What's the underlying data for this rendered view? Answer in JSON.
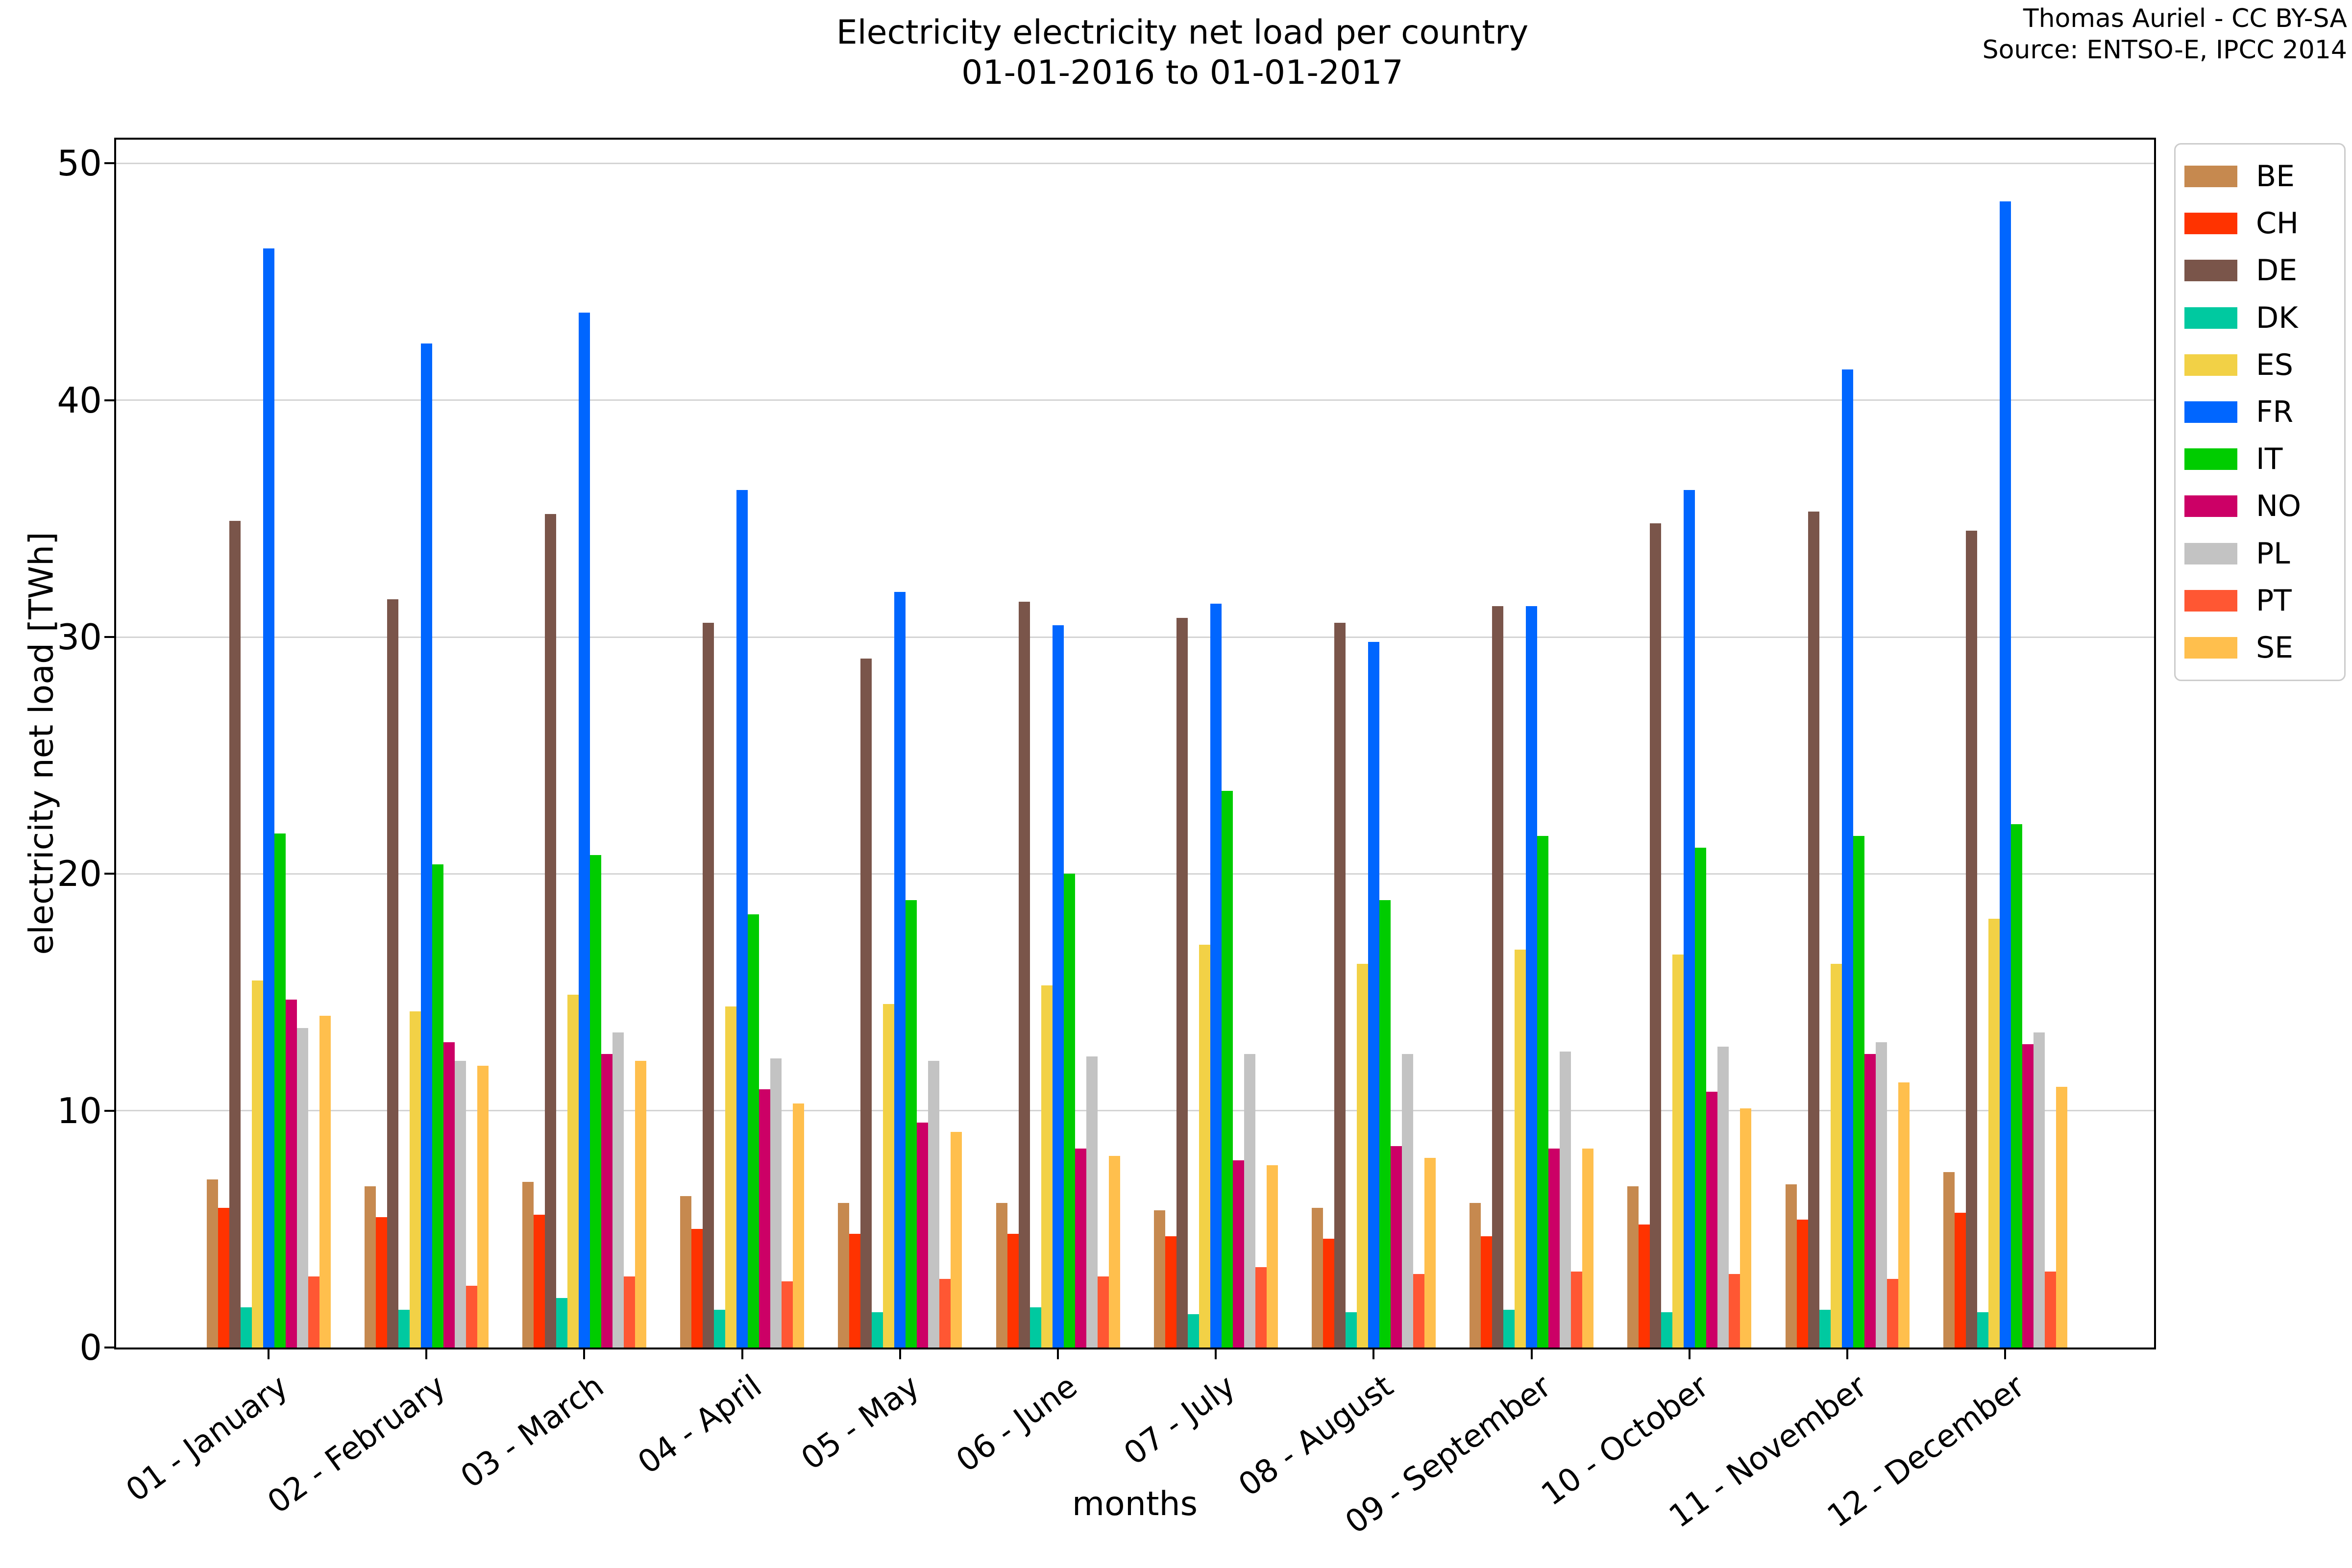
{
  "title": {
    "line1": "Electricity electricity net load per country",
    "line2": "01-01-2016 to 01-01-2017"
  },
  "attribution": {
    "line1": "Thomas Auriel - CC BY-SA",
    "line2": "Source: ENTSO-E, IPCC 2014"
  },
  "chart_data": {
    "type": "bar",
    "title": "Electricity electricity net load per country\n01-01-2016 to 01-01-2017",
    "xlabel": "months",
    "ylabel": "electricity net load [TWh]",
    "ylim": [
      0,
      51
    ],
    "yticks": [
      0,
      10,
      20,
      30,
      40,
      50
    ],
    "grid": true,
    "legend_position": "upper right, outside plot",
    "gridline_color": "#d4d4d4",
    "categories": [
      "01 - January",
      "02 - February",
      "03 - March",
      "04 - April",
      "05 - May",
      "06 - June",
      "07 - July",
      "08 - August",
      "09 - September",
      "10 - October",
      "11 - November",
      "12 - December"
    ],
    "series": [
      {
        "name": "BE",
        "color": "#C6894F",
        "values": [
          7.1,
          6.8,
          7.0,
          6.4,
          6.1,
          6.1,
          5.8,
          5.9,
          6.1,
          6.8,
          6.9,
          7.4
        ]
      },
      {
        "name": "CH",
        "color": "#FF3300",
        "values": [
          5.9,
          5.5,
          5.6,
          5.0,
          4.8,
          4.8,
          4.7,
          4.6,
          4.7,
          5.2,
          5.4,
          5.7
        ]
      },
      {
        "name": "DE",
        "color": "#7A554A",
        "values": [
          34.9,
          31.6,
          35.2,
          30.6,
          29.1,
          31.5,
          30.8,
          30.6,
          31.3,
          34.8,
          35.3,
          34.5
        ]
      },
      {
        "name": "DK",
        "color": "#00C9A0",
        "values": [
          1.7,
          1.6,
          2.1,
          1.6,
          1.5,
          1.7,
          1.4,
          1.5,
          1.6,
          1.5,
          1.6,
          1.5
        ]
      },
      {
        "name": "ES",
        "color": "#F2D146",
        "values": [
          15.5,
          14.2,
          14.9,
          14.4,
          14.5,
          15.3,
          17.0,
          16.2,
          16.8,
          16.6,
          16.2,
          18.1
        ]
      },
      {
        "name": "FR",
        "color": "#0066FF",
        "values": [
          46.4,
          42.4,
          43.7,
          36.2,
          31.9,
          30.5,
          31.4,
          29.8,
          31.3,
          36.2,
          41.3,
          48.4
        ]
      },
      {
        "name": "IT",
        "color": "#00CC00",
        "values": [
          21.7,
          20.4,
          20.8,
          18.3,
          18.9,
          20.0,
          23.5,
          18.9,
          21.6,
          21.1,
          21.6,
          22.1
        ]
      },
      {
        "name": "NO",
        "color": "#CC0066",
        "values": [
          14.7,
          12.9,
          12.4,
          10.9,
          9.5,
          8.4,
          7.9,
          8.5,
          8.4,
          10.8,
          12.4,
          12.8
        ]
      },
      {
        "name": "PL",
        "color": "#C3C3C3",
        "values": [
          13.5,
          12.1,
          13.3,
          12.2,
          12.1,
          12.3,
          12.4,
          12.4,
          12.5,
          12.7,
          12.9,
          13.3
        ]
      },
      {
        "name": "PT",
        "color": "#FF5733",
        "values": [
          3.0,
          2.6,
          3.0,
          2.8,
          2.9,
          3.0,
          3.4,
          3.1,
          3.2,
          3.1,
          2.9,
          3.2
        ]
      },
      {
        "name": "SE",
        "color": "#FFBF4D",
        "values": [
          14.0,
          11.9,
          12.1,
          10.3,
          9.1,
          8.1,
          7.7,
          8.0,
          8.4,
          10.1,
          11.2,
          11.0
        ]
      }
    ]
  }
}
